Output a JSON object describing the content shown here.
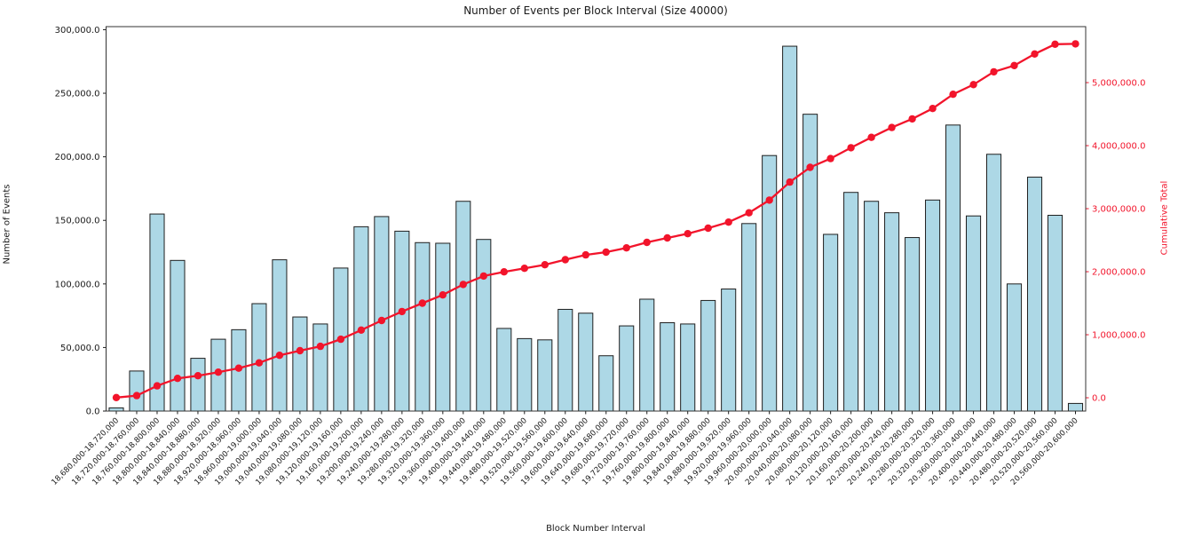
{
  "chart_data": {
    "type": "bar+line",
    "title": "Number of Events per Block Interval (Size 40000)",
    "xlabel": "Block Number Interval",
    "ylabel_left": "Number of Events",
    "ylabel_right": "Cumulative Total",
    "legend": "none",
    "grid": false,
    "categories": [
      "18,680,000-18,720,000",
      "18,720,000-18,760,000",
      "18,760,000-18,800,000",
      "18,800,000-18,840,000",
      "18,840,000-18,880,000",
      "18,880,000-18,920,000",
      "18,920,000-18,960,000",
      "18,960,000-19,000,000",
      "19,000,000-19,040,000",
      "19,040,000-19,080,000",
      "19,080,000-19,120,000",
      "19,120,000-19,160,000",
      "19,160,000-19,200,000",
      "19,200,000-19,240,000",
      "19,240,000-19,280,000",
      "19,280,000-19,320,000",
      "19,320,000-19,360,000",
      "19,360,000-19,400,000",
      "19,400,000-19,440,000",
      "19,440,000-19,480,000",
      "19,480,000-19,520,000",
      "19,520,000-19,560,000",
      "19,560,000-19,600,000",
      "19,600,000-19,640,000",
      "19,640,000-19,680,000",
      "19,680,000-19,720,000",
      "19,720,000-19,760,000",
      "19,760,000-19,800,000",
      "19,800,000-19,840,000",
      "19,840,000-19,880,000",
      "19,880,000-19,920,000",
      "19,920,000-19,960,000",
      "19,960,000-20,000,000",
      "20,000,000-20,040,000",
      "20,040,000-20,080,000",
      "20,080,000-20,120,000",
      "20,120,000-20,160,000",
      "20,160,000-20,200,000",
      "20,200,000-20,240,000",
      "20,240,000-20,280,000",
      "20,280,000-20,320,000",
      "20,320,000-20,360,000",
      "20,360,000-20,400,000",
      "20,400,000-20,440,000",
      "20,440,000-20,480,000",
      "20,480,000-20,520,000",
      "20,520,000-20,560,000",
      "20,560,000-20,600,000"
    ],
    "series": [
      {
        "name": "Number of Events",
        "style": "bar",
        "values": [
          2500,
          31500,
          155000,
          118500,
          41500,
          56500,
          64000,
          84500,
          119000,
          74000,
          68500,
          112500,
          145000,
          153000,
          141500,
          132500,
          132000,
          165000,
          135000,
          65000,
          57000,
          56000,
          80000,
          77000,
          43500,
          67000,
          88000,
          69500,
          68500,
          87000,
          96000,
          147500,
          201000,
          287000,
          233500,
          139000,
          172000,
          165000,
          156000,
          136500,
          166000,
          225000,
          153500,
          202000,
          100000,
          184000,
          154000,
          6000
        ]
      },
      {
        "name": "Cumulative Total",
        "style": "line",
        "values": [
          2500,
          34000,
          189000,
          307500,
          349000,
          405500,
          469500,
          554000,
          673000,
          747000,
          815500,
          928000,
          1073000,
          1226000,
          1367500,
          1500000,
          1632000,
          1797000,
          1932000,
          1997000,
          2054000,
          2110000,
          2190000,
          2267000,
          2310500,
          2377500,
          2465500,
          2535000,
          2603500,
          2690500,
          2786500,
          2934000,
          3135000,
          3422000,
          3655500,
          3794500,
          3966500,
          4131500,
          4287500,
          4424000,
          4590000,
          4815000,
          4968500,
          5170500,
          5270500,
          5454500,
          5608500,
          5614500
        ]
      }
    ],
    "y_left_ticks": {
      "values": [
        0,
        50000,
        100000,
        150000,
        200000,
        250000,
        300000
      ],
      "labels": [
        "0.0",
        "50,000.0",
        "100,000.0",
        "150,000.0",
        "200,000.0",
        "250,000.0",
        "300,000.0"
      ]
    },
    "y_right_ticks": {
      "values": [
        0,
        1000000,
        2000000,
        3000000,
        4000000,
        5000000
      ],
      "labels": [
        "0.0",
        "1,000,000.0",
        "2,000,000.0",
        "3,000,000.0",
        "4,000,000.0",
        "5,000,000.0"
      ]
    },
    "y_left_lim": [
      0,
      302400
    ],
    "y_right_lim": [
      -211000,
      5888000
    ],
    "colors": {
      "bar_fill": "#ADD8E6",
      "bar_edge": "#1f1f1f",
      "line": "#f2142b",
      "right_axis_text": "#f2142b",
      "axis_text": "#1a1a1a",
      "spine": "#333333",
      "background": "#ffffff"
    }
  }
}
